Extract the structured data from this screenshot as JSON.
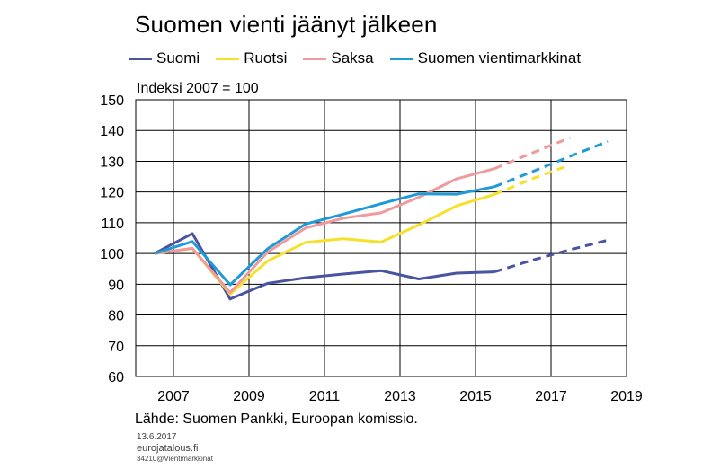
{
  "title": "Suomen vienti jäänyt jälkeen",
  "subtitle": "Indeksi 2007 = 100",
  "source": "Lähde: Suomen Pankki, Euroopan komissio.",
  "footer": {
    "date": "13.6.2017",
    "site": "eurojatalous.fi",
    "code": "34210@Vientimarkkinat"
  },
  "legend": [
    {
      "name": "Suomi",
      "color": "#4a53a0"
    },
    {
      "name": "Ruotsi",
      "color": "#f6e12a"
    },
    {
      "name": "Saksa",
      "color": "#ef9a9c"
    },
    {
      "name": "Suomen vientimarkkinat",
      "color": "#1f9ad6"
    }
  ],
  "chart_data": {
    "type": "line",
    "xlim": [
      2006,
      2019
    ],
    "ylim": [
      60,
      150
    ],
    "xticks": [
      2007,
      2009,
      2011,
      2013,
      2015,
      2017,
      2019
    ],
    "yticks": [
      60,
      70,
      80,
      90,
      100,
      110,
      120,
      130,
      140,
      150
    ],
    "grid": true,
    "legend_position": "top",
    "series": [
      {
        "name": "Suomi",
        "color": "#4a53a0",
        "actual": [
          [
            2006.5,
            100
          ],
          [
            2007.5,
            106.5
          ],
          [
            2008.5,
            85.2
          ],
          [
            2009.5,
            90.3
          ],
          [
            2010.5,
            92.1
          ],
          [
            2011.5,
            93.3
          ],
          [
            2012.5,
            94.4
          ],
          [
            2013.5,
            91.7
          ],
          [
            2014.5,
            93.6
          ],
          [
            2015.5,
            94.0
          ]
        ],
        "forecast": [
          [
            2015.5,
            94.0
          ],
          [
            2016.5,
            97.8
          ],
          [
            2017.5,
            101.2
          ],
          [
            2018.5,
            104.3
          ]
        ]
      },
      {
        "name": "Ruotsi",
        "color": "#f6e12a",
        "actual": [
          [
            2006.5,
            100
          ],
          [
            2007.5,
            101.6
          ],
          [
            2008.5,
            86.8
          ],
          [
            2009.5,
            97.6
          ],
          [
            2010.5,
            103.6
          ],
          [
            2011.5,
            104.8
          ],
          [
            2012.5,
            103.7
          ],
          [
            2013.5,
            109.3
          ],
          [
            2014.5,
            115.5
          ],
          [
            2015.5,
            119.2
          ]
        ],
        "forecast": [
          [
            2015.5,
            119.2
          ],
          [
            2016.5,
            124.3
          ],
          [
            2017.5,
            128.8
          ]
        ]
      },
      {
        "name": "Saksa",
        "color": "#ef9a9c",
        "actual": [
          [
            2006.5,
            100
          ],
          [
            2007.5,
            101.7
          ],
          [
            2008.5,
            87.3
          ],
          [
            2009.5,
            100.5
          ],
          [
            2010.5,
            108.3
          ],
          [
            2011.5,
            111.5
          ],
          [
            2012.5,
            113.2
          ],
          [
            2013.5,
            118.3
          ],
          [
            2014.5,
            124.3
          ],
          [
            2015.5,
            127.6
          ]
        ],
        "forecast": [
          [
            2015.5,
            127.6
          ],
          [
            2016.5,
            132.7
          ],
          [
            2017.5,
            137.6
          ]
        ]
      },
      {
        "name": "Suomen vientimarkkinat",
        "color": "#1f9ad6",
        "actual": [
          [
            2006.5,
            100
          ],
          [
            2007.5,
            103.9
          ],
          [
            2008.5,
            89.8
          ],
          [
            2009.5,
            101.6
          ],
          [
            2010.5,
            109.6
          ],
          [
            2011.5,
            112.8
          ],
          [
            2012.5,
            116.2
          ],
          [
            2013.5,
            119.4
          ],
          [
            2014.5,
            119.3
          ],
          [
            2015.5,
            121.7
          ]
        ],
        "forecast": [
          [
            2015.5,
            121.7
          ],
          [
            2016.5,
            126.6
          ],
          [
            2017.5,
            131.6
          ],
          [
            2018.5,
            136.4
          ]
        ]
      }
    ]
  }
}
